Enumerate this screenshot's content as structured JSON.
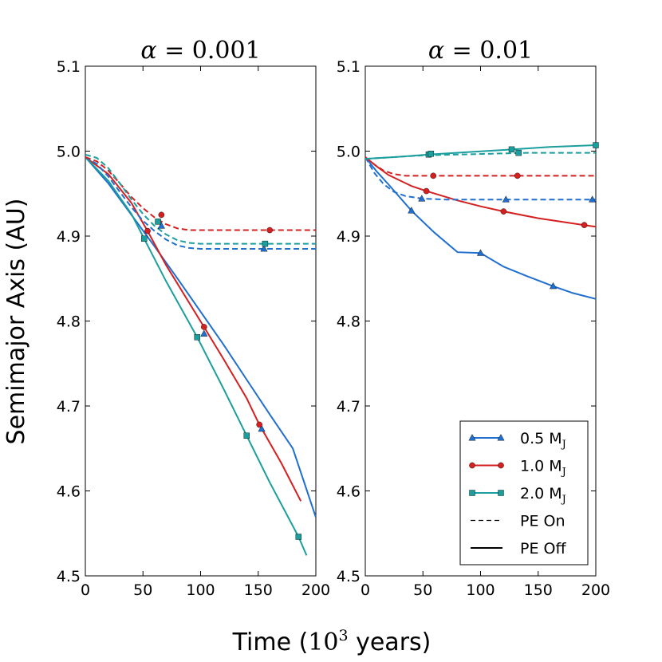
{
  "figure": {
    "ylabel": "Semimajor Axis (AU)",
    "xlabel_prefix": "Time (",
    "xlabel_base": "10",
    "xlabel_exp": "3",
    "xlabel_suffix": " years)"
  },
  "legend": [
    {
      "key": "m05",
      "label": "0.5 M",
      "sub": "J",
      "color": "#1f6fd1",
      "marker": "triangle",
      "linestyle": "solid"
    },
    {
      "key": "m10",
      "label": "1.0 M",
      "sub": "J",
      "color": "#d42020",
      "marker": "circle",
      "linestyle": "solid"
    },
    {
      "key": "m20",
      "label": "2.0 M",
      "sub": "J",
      "color": "#1a9e9e",
      "marker": "square",
      "linestyle": "solid"
    },
    {
      "key": "on",
      "label": "PE On",
      "sub": "",
      "color": "#000000",
      "marker": "none",
      "linestyle": "dashed"
    },
    {
      "key": "off",
      "label": "PE Off",
      "sub": "",
      "color": "#000000",
      "marker": "none",
      "linestyle": "solid"
    }
  ],
  "chart_data": [
    {
      "type": "line",
      "title": "α = 0.001",
      "title_sym": "α",
      "title_eq": " = 0.001",
      "xlim": [
        0,
        200
      ],
      "ylim": [
        4.5,
        5.1
      ],
      "xticks": [
        "0",
        "50",
        "100",
        "150",
        "200"
      ],
      "yticks": [
        "4.5",
        "4.6",
        "4.7",
        "4.8",
        "4.9",
        "5.0",
        "5.1"
      ],
      "series": [
        {
          "name": "0.5 MJ PE Off",
          "mass": "m05",
          "pe": "off",
          "color": "#1f6fd1",
          "marker": "triangle",
          "x": [
            0,
            20,
            40,
            60,
            80,
            100,
            120,
            140,
            160,
            180,
            200
          ],
          "y": [
            4.993,
            4.962,
            4.925,
            4.888,
            4.85,
            4.811,
            4.772,
            4.731,
            4.69,
            4.65,
            4.569
          ],
          "mx": [
            103,
            153
          ],
          "my": [
            4.785,
            4.673
          ]
        },
        {
          "name": "1.0 MJ PE Off",
          "mass": "m10",
          "pe": "off",
          "color": "#d42020",
          "marker": "circle",
          "x": [
            0,
            20,
            40,
            54,
            70,
            103,
            120,
            140,
            151,
            170,
            187
          ],
          "y": [
            4.993,
            4.973,
            4.939,
            4.906,
            4.866,
            4.793,
            4.755,
            4.709,
            4.678,
            4.633,
            4.588
          ],
          "mx": [
            54,
            103,
            151
          ],
          "my": [
            4.906,
            4.793,
            4.678
          ]
        },
        {
          "name": "2.0 MJ PE Off",
          "mass": "m20",
          "pe": "off",
          "color": "#1a9e9e",
          "marker": "square",
          "x": [
            0,
            20,
            40,
            51,
            70,
            97,
            120,
            140,
            160,
            185,
            192
          ],
          "y": [
            4.993,
            4.965,
            4.926,
            4.897,
            4.847,
            4.781,
            4.72,
            4.665,
            4.61,
            4.546,
            4.524
          ],
          "mx": [
            51,
            97,
            140,
            185
          ],
          "my": [
            4.897,
            4.781,
            4.665,
            4.546
          ]
        },
        {
          "name": "0.5 MJ PE On",
          "mass": "m05",
          "pe": "on",
          "color": "#1f6fd1",
          "marker": "triangle",
          "x": [
            0,
            10,
            20,
            30,
            40,
            50,
            60,
            70,
            80,
            90,
            100,
            200
          ],
          "y": [
            4.993,
            4.985,
            4.97,
            4.952,
            4.934,
            4.918,
            4.906,
            4.896,
            4.889,
            4.886,
            4.885,
            4.885
          ],
          "mx": [
            66,
            155
          ],
          "my": [
            4.912,
            4.885
          ]
        },
        {
          "name": "1.0 MJ PE On",
          "mass": "m10",
          "pe": "on",
          "color": "#d42020",
          "marker": "circle",
          "x": [
            0,
            10,
            20,
            30,
            40,
            50,
            60,
            70,
            80,
            90,
            100,
            200
          ],
          "y": [
            4.993,
            4.988,
            4.977,
            4.962,
            4.946,
            4.933,
            4.922,
            4.914,
            4.909,
            4.907,
            4.907,
            4.907
          ],
          "mx": [
            66,
            160
          ],
          "my": [
            4.925,
            4.907
          ]
        },
        {
          "name": "2.0 MJ PE On",
          "mass": "m20",
          "pe": "on",
          "color": "#1a9e9e",
          "marker": "square",
          "x": [
            0,
            10,
            20,
            30,
            40,
            50,
            60,
            70,
            80,
            90,
            100,
            200
          ],
          "y": [
            4.996,
            4.992,
            4.98,
            4.962,
            4.943,
            4.926,
            4.912,
            4.902,
            4.895,
            4.892,
            4.891,
            4.891
          ],
          "mx": [
            63,
            156
          ],
          "my": [
            4.917,
            4.891
          ]
        }
      ]
    },
    {
      "type": "line",
      "title": "α = 0.01",
      "title_sym": "α",
      "title_eq": " = 0.01",
      "xlim": [
        0,
        200
      ],
      "ylim": [
        4.5,
        5.1
      ],
      "xticks": [
        "0",
        "50",
        "100",
        "150",
        "200"
      ],
      "yticks": [
        "4.5",
        "4.6",
        "4.7",
        "4.8",
        "4.9",
        "5.0",
        "5.1"
      ],
      "series": [
        {
          "name": "0.5 MJ PE Off",
          "mass": "m05",
          "pe": "off",
          "color": "#1f6fd1",
          "marker": "triangle",
          "x": [
            0,
            10,
            20,
            40,
            60,
            80,
            100,
            120,
            140,
            163,
            180,
            200
          ],
          "y": [
            4.993,
            4.976,
            4.961,
            4.93,
            4.904,
            4.881,
            4.88,
            4.864,
            4.853,
            4.841,
            4.833,
            4.826
          ],
          "mx": [
            40,
            100,
            163
          ],
          "my": [
            4.93,
            4.88,
            4.841
          ]
        },
        {
          "name": "1.0 MJ PE Off",
          "mass": "m10",
          "pe": "off",
          "color": "#d42020",
          "marker": "circle",
          "x": [
            0,
            10,
            20,
            40,
            53,
            80,
            100,
            120,
            150,
            190,
            200
          ],
          "y": [
            4.993,
            4.982,
            4.972,
            4.959,
            4.953,
            4.942,
            4.935,
            4.929,
            4.921,
            4.913,
            4.911
          ],
          "mx": [
            53,
            120,
            190
          ],
          "my": [
            4.953,
            4.929,
            4.913
          ]
        },
        {
          "name": "2.0 MJ PE Off",
          "mass": "m20",
          "pe": "off",
          "color": "#1a9e9e",
          "marker": "square",
          "x": [
            0,
            25,
            55,
            90,
            127,
            160,
            200
          ],
          "y": [
            4.991,
            4.993,
            4.996,
            4.999,
            5.002,
            5.005,
            5.007
          ],
          "mx": [
            55,
            127,
            200
          ],
          "my": [
            4.996,
            5.002,
            5.007
          ]
        },
        {
          "name": "0.5 MJ PE On",
          "mass": "m05",
          "pe": "on",
          "color": "#1f6fd1",
          "marker": "triangle",
          "x": [
            0,
            8,
            16,
            25,
            35,
            50,
            70,
            100,
            200
          ],
          "y": [
            4.993,
            4.974,
            4.961,
            4.952,
            4.947,
            4.944,
            4.943,
            4.943,
            4.943
          ],
          "mx": [
            49,
            122,
            197
          ],
          "my": [
            4.944,
            4.943,
            4.943
          ]
        },
        {
          "name": "1.0 MJ PE On",
          "mass": "m10",
          "pe": "on",
          "color": "#d42020",
          "marker": "circle",
          "x": [
            0,
            8,
            16,
            25,
            35,
            50,
            70,
            100,
            200
          ],
          "y": [
            4.993,
            4.984,
            4.977,
            4.973,
            4.971,
            4.971,
            4.971,
            4.971,
            4.971
          ],
          "mx": [
            59,
            132
          ],
          "my": [
            4.971,
            4.971
          ]
        },
        {
          "name": "2.0 MJ PE On",
          "mass": "m20",
          "pe": "on",
          "color": "#1a9e9e",
          "marker": "square",
          "x": [
            0,
            25,
            50,
            80,
            110,
            140,
            170,
            200
          ],
          "y": [
            4.991,
            4.993,
            4.995,
            4.996,
            4.997,
            4.998,
            4.998,
            4.998
          ],
          "mx": [
            57,
            133
          ],
          "my": [
            4.997,
            4.998
          ]
        }
      ]
    }
  ]
}
